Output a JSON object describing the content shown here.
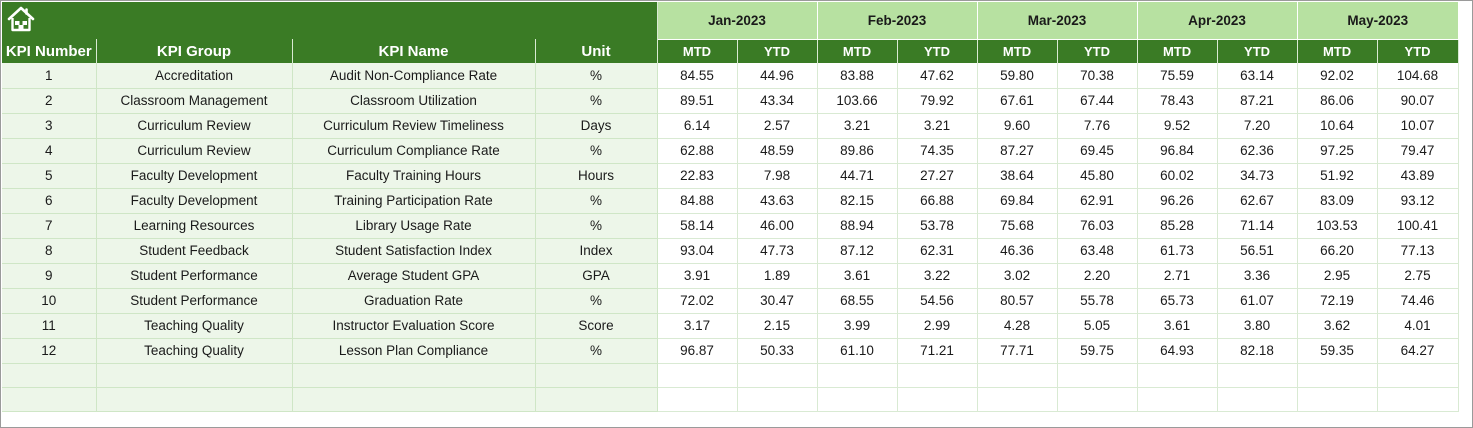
{
  "banner": {
    "home_icon": "home-icon"
  },
  "months": [
    "Jan-2023",
    "Feb-2023",
    "Mar-2023",
    "Apr-2023",
    "May-2023"
  ],
  "headers": {
    "kpi_number": "KPI Number",
    "kpi_group": "KPI Group",
    "kpi_name": "KPI Name",
    "unit": "Unit",
    "mtd": "MTD",
    "ytd": "YTD"
  },
  "colors": {
    "header_green": "#3a7b25",
    "month_green": "#b7e1a1",
    "row_tint": "#edf6e9"
  },
  "rows": [
    {
      "num": "1",
      "group": "Accreditation",
      "name": "Audit Non-Compliance Rate",
      "unit": "%",
      "vals": [
        "84.55",
        "44.96",
        "83.88",
        "47.62",
        "59.80",
        "70.38",
        "75.59",
        "63.14",
        "92.02",
        "104.68"
      ]
    },
    {
      "num": "2",
      "group": "Classroom Management",
      "name": "Classroom Utilization",
      "unit": "%",
      "vals": [
        "89.51",
        "43.34",
        "103.66",
        "79.92",
        "67.61",
        "67.44",
        "78.43",
        "87.21",
        "86.06",
        "90.07"
      ]
    },
    {
      "num": "3",
      "group": "Curriculum Review",
      "name": "Curriculum Review Timeliness",
      "unit": "Days",
      "vals": [
        "6.14",
        "2.57",
        "3.21",
        "3.21",
        "9.60",
        "7.76",
        "9.52",
        "7.20",
        "10.64",
        "10.07"
      ]
    },
    {
      "num": "4",
      "group": "Curriculum Review",
      "name": "Curriculum Compliance Rate",
      "unit": "%",
      "vals": [
        "62.88",
        "48.59",
        "89.86",
        "74.35",
        "87.27",
        "69.45",
        "96.84",
        "62.36",
        "97.25",
        "79.47"
      ]
    },
    {
      "num": "5",
      "group": "Faculty Development",
      "name": "Faculty Training Hours",
      "unit": "Hours",
      "vals": [
        "22.83",
        "7.98",
        "44.71",
        "27.27",
        "38.64",
        "45.80",
        "60.02",
        "34.73",
        "51.92",
        "43.89"
      ]
    },
    {
      "num": "6",
      "group": "Faculty Development",
      "name": "Training Participation Rate",
      "unit": "%",
      "vals": [
        "84.88",
        "43.63",
        "82.15",
        "66.88",
        "69.84",
        "62.91",
        "96.26",
        "62.67",
        "83.09",
        "93.12"
      ]
    },
    {
      "num": "7",
      "group": "Learning Resources",
      "name": "Library Usage Rate",
      "unit": "%",
      "vals": [
        "58.14",
        "46.00",
        "88.94",
        "53.78",
        "75.68",
        "76.03",
        "85.28",
        "71.14",
        "103.53",
        "100.41"
      ]
    },
    {
      "num": "8",
      "group": "Student Feedback",
      "name": "Student Satisfaction Index",
      "unit": "Index",
      "vals": [
        "93.04",
        "47.73",
        "87.12",
        "62.31",
        "46.36",
        "63.48",
        "61.73",
        "56.51",
        "66.20",
        "77.13"
      ]
    },
    {
      "num": "9",
      "group": "Student Performance",
      "name": "Average Student GPA",
      "unit": "GPA",
      "vals": [
        "3.91",
        "1.89",
        "3.61",
        "3.22",
        "3.02",
        "2.20",
        "2.71",
        "3.36",
        "2.95",
        "2.75"
      ]
    },
    {
      "num": "10",
      "group": "Student Performance",
      "name": "Graduation Rate",
      "unit": "%",
      "vals": [
        "72.02",
        "30.47",
        "68.55",
        "54.56",
        "80.57",
        "55.78",
        "65.73",
        "61.07",
        "72.19",
        "74.46"
      ]
    },
    {
      "num": "11",
      "group": "Teaching Quality",
      "name": "Instructor Evaluation Score",
      "unit": "Score",
      "vals": [
        "3.17",
        "2.15",
        "3.99",
        "2.99",
        "4.28",
        "5.05",
        "3.61",
        "3.80",
        "3.62",
        "4.01"
      ]
    },
    {
      "num": "12",
      "group": "Teaching Quality",
      "name": "Lesson Plan Compliance",
      "unit": "%",
      "vals": [
        "96.87",
        "50.33",
        "61.10",
        "71.21",
        "77.71",
        "59.75",
        "64.93",
        "82.18",
        "59.35",
        "64.27"
      ]
    }
  ],
  "empty_rows": 2
}
